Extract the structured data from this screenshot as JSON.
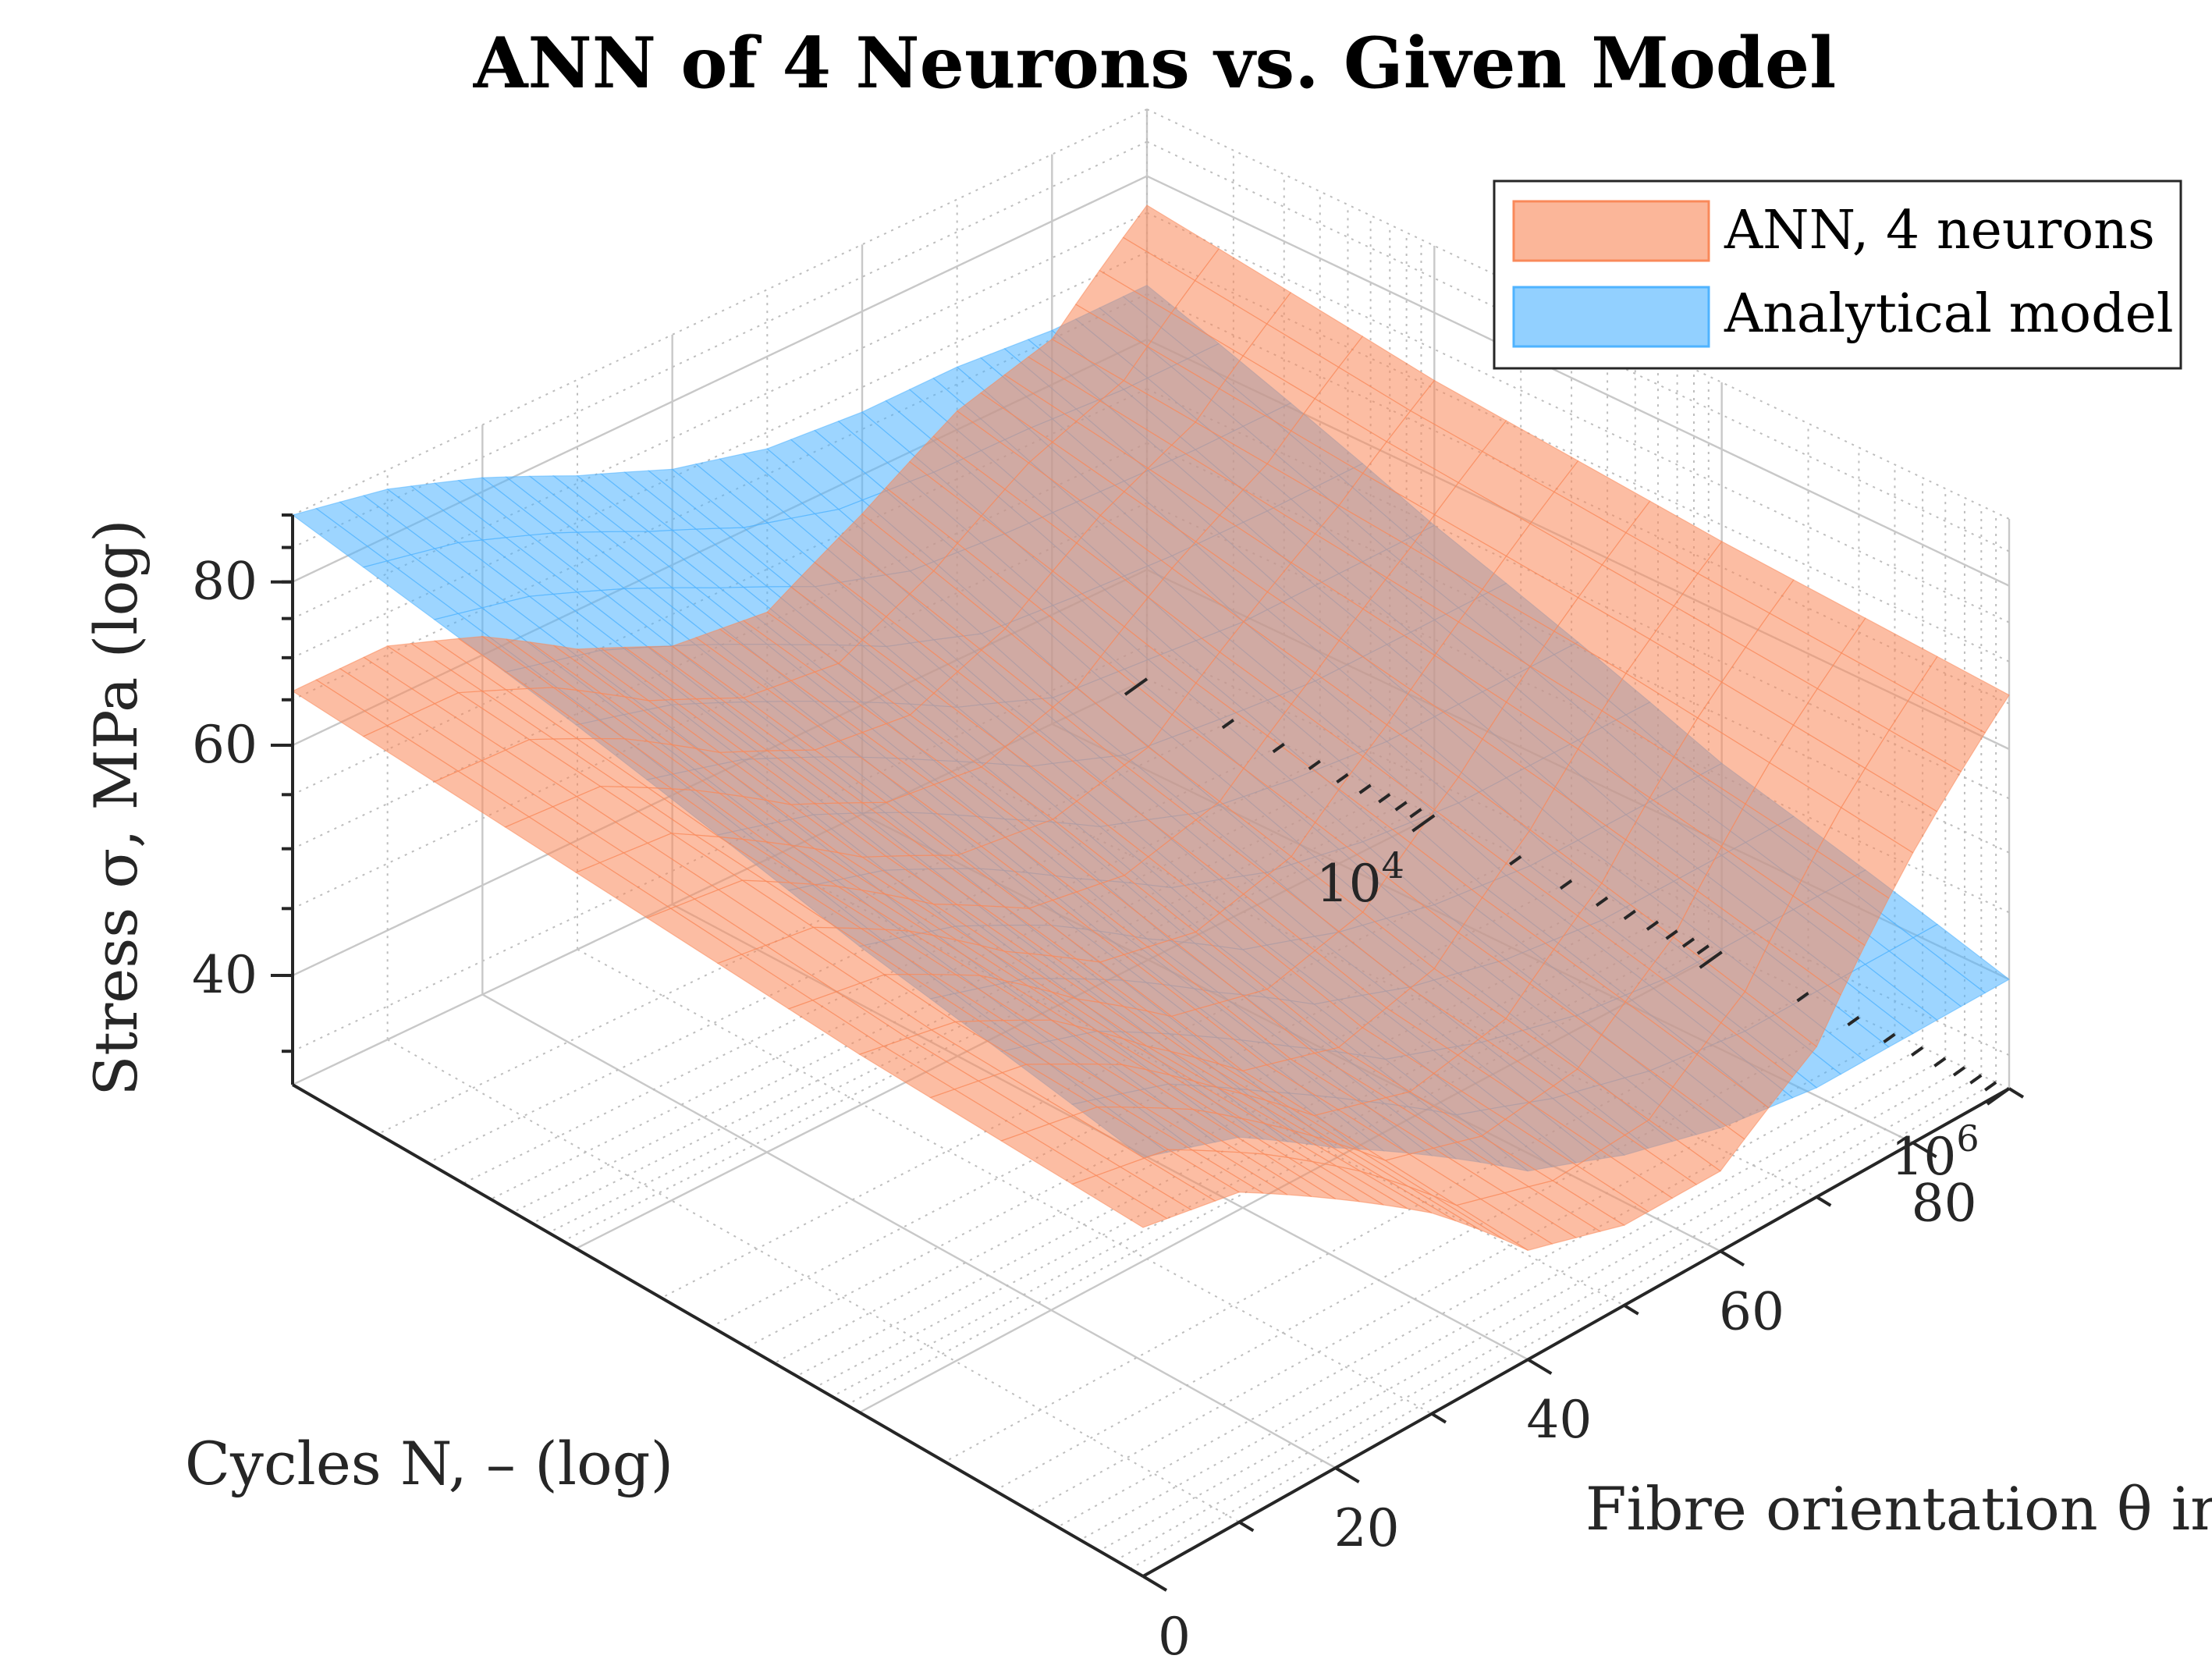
{
  "chart_data": {
    "type": "surface",
    "title": "ANN of 4 Neurons vs. Given Model",
    "xlabel": "Fibre orientation θ in °",
    "ylabel": "Cycles N, – (log)",
    "zlabel": "Stress σ, MPa (log)",
    "x_range": [
      0,
      90
    ],
    "y_range": [
      1000,
      1000000
    ],
    "z_range": [
      33,
      90
    ],
    "x_ticks": [
      {
        "value": 0,
        "label": "0"
      },
      {
        "value": 20,
        "label": "20"
      },
      {
        "value": 40,
        "label": "40"
      },
      {
        "value": 60,
        "label": "60"
      },
      {
        "value": 80,
        "label": "80"
      }
    ],
    "y_ticks": [
      {
        "value": 10000,
        "base": "10",
        "exp": "4"
      },
      {
        "value": 1000000,
        "base": "10",
        "exp": "6"
      }
    ],
    "z_ticks": [
      {
        "value": 40,
        "label": "40"
      },
      {
        "value": 60,
        "label": "60"
      },
      {
        "value": 80,
        "label": "80"
      }
    ],
    "y_scale": "log",
    "z_scale": "log",
    "grid": true,
    "legend_position": "top-right",
    "series": [
      {
        "name": "ANN, 4 neurons",
        "color": "#f9895a",
        "fill_opacity": 0.62,
        "theta": [
          0,
          10,
          20,
          30,
          40,
          50,
          60,
          70,
          80,
          90
        ],
        "cycles": [
          1000,
          10000,
          100000,
          1000000
        ],
        "stress": [
          [
            66,
            66,
            62,
            56,
            52,
            51,
            56,
            62,
            65,
            76
          ],
          [
            64,
            63,
            57,
            51,
            47,
            46,
            48,
            55,
            62,
            71
          ],
          [
            62,
            60,
            55,
            48,
            42,
            40,
            42,
            49,
            59,
            68
          ],
          [
            61,
            59,
            53,
            47,
            40,
            38,
            38,
            43,
            55,
            66
          ]
        ]
      },
      {
        "name": "Analytical model",
        "color": "#4fb3ff",
        "fill_opacity": 0.62,
        "theta": [
          0,
          10,
          20,
          30,
          40,
          50,
          60,
          70,
          80,
          90
        ],
        "cycles": [
          1000,
          10000,
          100000,
          1000000
        ],
        "stress": [
          [
            90,
            87,
            82,
            76,
            71,
            68,
            67,
            67,
            66,
            66
          ],
          [
            83,
            79,
            73,
            67,
            61,
            57,
            56,
            55,
            55,
            55
          ],
          [
            75,
            71,
            65,
            58,
            52,
            49,
            47,
            46,
            46,
            46
          ],
          [
            69,
            65,
            58,
            52,
            46,
            43,
            41,
            40,
            40,
            40
          ]
        ]
      }
    ]
  }
}
